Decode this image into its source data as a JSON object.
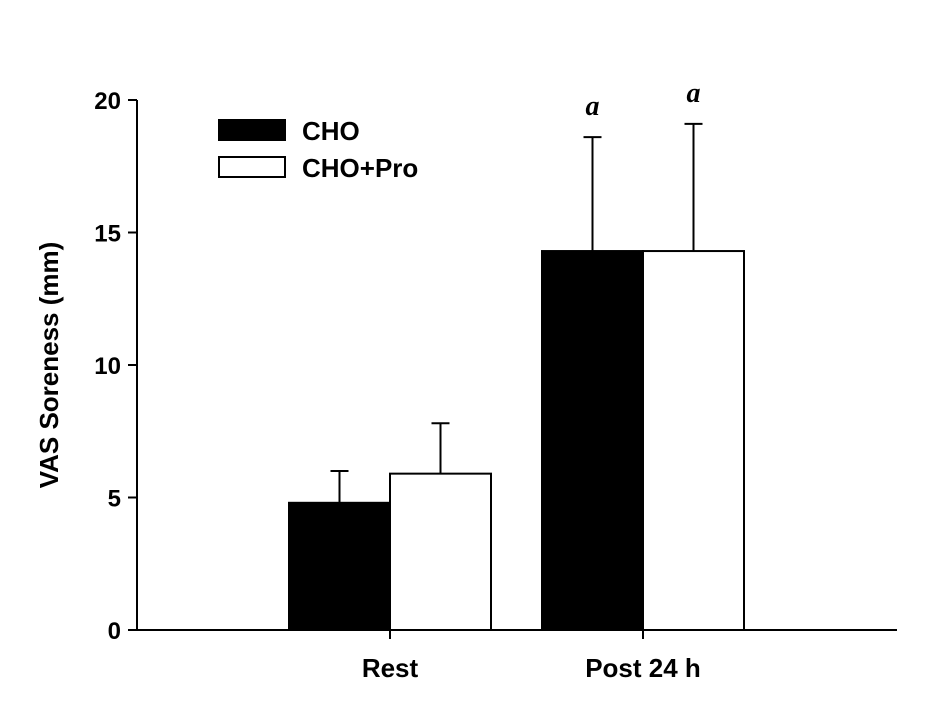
{
  "chart_data": {
    "type": "bar",
    "title": "",
    "xlabel": "",
    "ylabel": "VAS Soreness (mm)",
    "ylim": [
      0,
      20
    ],
    "yticks": [
      0,
      5,
      10,
      15,
      20
    ],
    "categories": [
      "Rest",
      "Post 24 h"
    ],
    "series": [
      {
        "name": "CHO",
        "values": [
          4.8,
          14.3
        ],
        "errors": [
          1.2,
          4.3
        ],
        "color": "#000000"
      },
      {
        "name": "CHO+Pro",
        "values": [
          5.9,
          14.3
        ],
        "errors": [
          1.9,
          4.8
        ],
        "color": "#ffffff"
      }
    ],
    "annotations": [
      {
        "text": "a",
        "category": 1,
        "series": 0
      },
      {
        "text": "a",
        "category": 1,
        "series": 1
      }
    ],
    "legend": "top-left",
    "grid": false
  }
}
